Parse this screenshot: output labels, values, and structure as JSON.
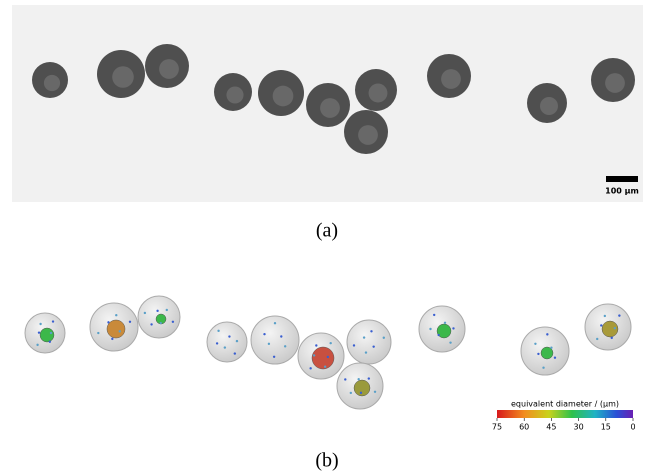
{
  "panel_a": {
    "scale_bar_label": "100 µm",
    "caption": "(a)"
  },
  "panel_b": {
    "colorbar": {
      "label": "equivalent diameter / (µm)",
      "ticks": [
        75,
        60,
        45,
        30,
        15,
        0
      ]
    },
    "caption": "(b)"
  }
}
